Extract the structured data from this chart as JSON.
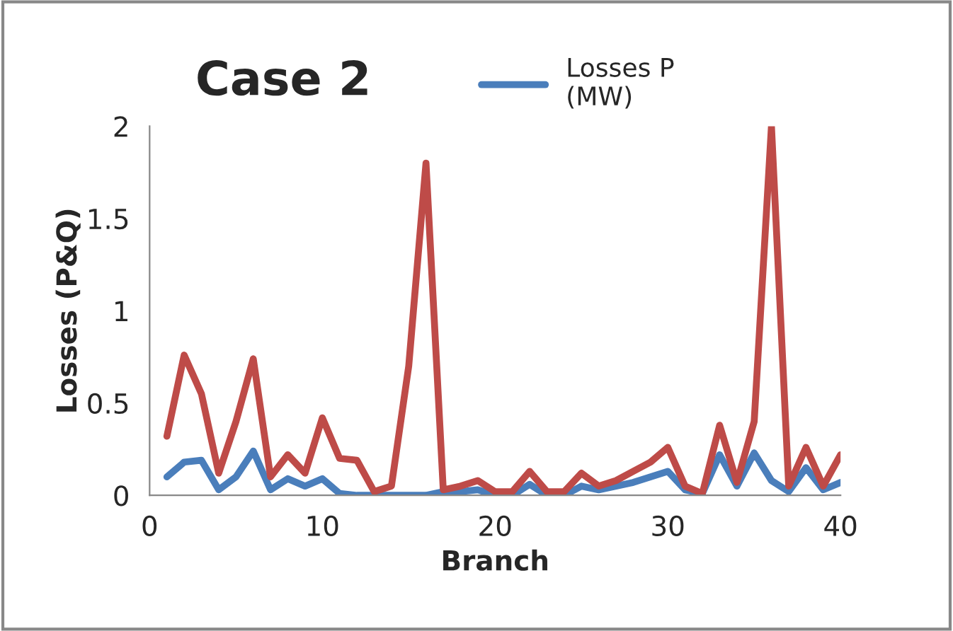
{
  "chart_data": {
    "type": "line",
    "title": "Case 2",
    "xlabel": "Branch",
    "ylabel": "Losses (P&Q)",
    "x": [
      1,
      2,
      3,
      4,
      5,
      6,
      7,
      8,
      9,
      10,
      11,
      12,
      13,
      14,
      15,
      16,
      17,
      18,
      19,
      20,
      21,
      22,
      23,
      24,
      25,
      26,
      27,
      28,
      29,
      30,
      31,
      32,
      33,
      34,
      35,
      36,
      37,
      38,
      39,
      40
    ],
    "series": [
      {
        "name": "Losses P\n(MW)",
        "color": "#4a7ebb",
        "values": [
          0.1,
          0.18,
          0.19,
          0.03,
          0.1,
          0.24,
          0.03,
          0.09,
          0.05,
          0.09,
          0.01,
          0,
          0,
          0,
          0,
          0,
          0.02,
          0.02,
          0.03,
          0,
          0,
          0.06,
          0,
          0,
          0.05,
          0.03,
          0.05,
          0.07,
          0.1,
          0.13,
          0.03,
          0.01,
          0.22,
          0.05,
          0.23,
          0.08,
          0.02,
          0.15,
          0.03,
          0.07
        ]
      },
      {
        "color": "#be4b48",
        "values": [
          0.32,
          0.76,
          0.55,
          0.12,
          0.4,
          0.74,
          0.1,
          0.22,
          0.12,
          0.42,
          0.2,
          0.19,
          0.02,
          0.05,
          0.7,
          1.8,
          0.03,
          0.05,
          0.08,
          0.02,
          0.02,
          0.13,
          0.02,
          0.02,
          0.12,
          0.05,
          0.08,
          0.13,
          0.18,
          0.26,
          0.05,
          0.01,
          0.38,
          0.07,
          0.4,
          2,
          0.05,
          0.26,
          0.05,
          0.22
        ]
      }
    ],
    "xlim": [
      0,
      40
    ],
    "xticks": [
      0,
      10,
      20,
      30,
      40
    ],
    "ylim": [
      0,
      2
    ],
    "yticks": [
      0,
      0.5,
      1,
      1.5,
      2
    ],
    "grid": false,
    "legend": "top",
    "marker": "none",
    "line_style": "solid"
  }
}
